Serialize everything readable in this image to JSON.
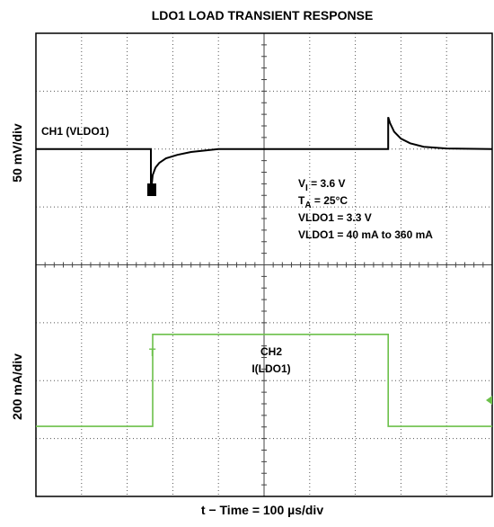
{
  "chart_data": {
    "type": "line",
    "title": "LDO1 LOAD TRANSIENT RESPONSE",
    "x_label": "t − Time = 100 µs/div",
    "y_labels": [
      "50 mV/div",
      "200 mA/div"
    ],
    "xlim": [
      0,
      1000
    ],
    "xticks": [
      0,
      100,
      200,
      300,
      400,
      500,
      600,
      700,
      800,
      900,
      1000
    ],
    "ylim": [
      0,
      8
    ],
    "yticks": [
      0,
      1,
      2,
      3,
      4,
      5,
      6,
      7,
      8
    ],
    "grid": true,
    "series": [
      {
        "name": "CH1 (VLDO1)",
        "color": "#000000",
        "x": [
          0,
          252,
          252,
          256,
          262,
          270,
          285,
          310,
          340,
          400,
          772,
          772,
          776,
          785,
          800,
          820,
          850,
          900,
          1000
        ],
        "values": [
          6.0,
          6.0,
          5.25,
          5.55,
          5.68,
          5.76,
          5.84,
          5.9,
          5.95,
          6.0,
          6.0,
          6.55,
          6.45,
          6.3,
          6.18,
          6.1,
          6.04,
          6.01,
          6.0
        ]
      },
      {
        "name": "CH2",
        "name2": "I(LDO1)",
        "color": "#6cc04a",
        "x": [
          0,
          256,
          256,
          772,
          772,
          1000
        ],
        "values": [
          1.21,
          1.21,
          2.8,
          2.8,
          1.21,
          1.21
        ]
      }
    ],
    "annotations": [
      {
        "main": "V",
        "sub": "I",
        "tail": " = 3.6 V"
      },
      {
        "main": "T",
        "sub": "A",
        "tail": " = 25°C"
      },
      {
        "main": "VLDO1 = 3.3 V"
      },
      {
        "main": "VLDO1 = 40 mA to 360 mA"
      }
    ]
  }
}
